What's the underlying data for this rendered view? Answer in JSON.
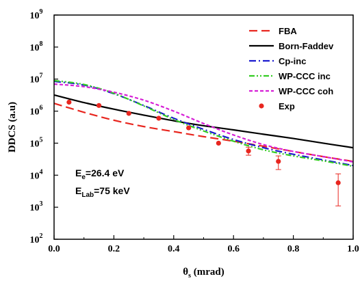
{
  "chart_data": {
    "type": "line",
    "xlabel": "θ",
    "xlabel_sub": "s",
    "xlabel_unit": " (mrad)",
    "ylabel": "DDCS (a.u)",
    "xlim": [
      0.0,
      1.0
    ],
    "ylim": [
      100,
      1000000000
    ],
    "yscale": "log",
    "x_ticks": [
      0.0,
      0.2,
      0.4,
      0.6,
      0.8,
      1.0
    ],
    "x_tick_labels": [
      "0.0",
      "0.2",
      "0.4",
      "0.6",
      "0.8",
      "1.0"
    ],
    "y_ticks": [
      {
        "value": 100,
        "base": "10",
        "exp": "2"
      },
      {
        "value": 1000,
        "base": "10",
        "exp": "3"
      },
      {
        "value": 10000,
        "base": "10",
        "exp": "4"
      },
      {
        "value": 100000,
        "base": "10",
        "exp": "5"
      },
      {
        "value": 1000000,
        "base": "10",
        "exp": "6"
      },
      {
        "value": 10000000,
        "base": "10",
        "exp": "7"
      },
      {
        "value": 100000000,
        "base": "10",
        "exp": "8"
      },
      {
        "value": 1000000000,
        "base": "10",
        "exp": "9"
      }
    ],
    "legend_position": "top-right",
    "series": [
      {
        "name": "FBA",
        "color": "#e8261f",
        "dash": "long-dash",
        "width": 2.2,
        "x": [
          0.0,
          0.1,
          0.2,
          0.3,
          0.4,
          0.5,
          0.6,
          0.7,
          0.8,
          0.9,
          1.0
        ],
        "y": [
          1750000,
          920000,
          520000,
          330000,
          230000,
          160000,
          115000,
          80000,
          55000,
          38000,
          27000
        ]
      },
      {
        "name": "Born-Faddev",
        "color": "#000000",
        "dash": "solid",
        "width": 2.2,
        "x": [
          0.0,
          0.1,
          0.2,
          0.3,
          0.4,
          0.5,
          0.6,
          0.7,
          0.8,
          0.9,
          1.0
        ],
        "y": [
          3200000,
          1850000,
          1150000,
          750000,
          500000,
          350000,
          260000,
          190000,
          140000,
          100000,
          72000
        ]
      },
      {
        "name": "Cp-inc",
        "color": "#1a1acf",
        "dash": "dash-dot",
        "width": 2.2,
        "x": [
          0.0,
          0.1,
          0.2,
          0.3,
          0.4,
          0.5,
          0.6,
          0.7,
          0.8,
          0.9,
          1.0
        ],
        "y": [
          8500000,
          6500000,
          3500000,
          1500000,
          600000,
          270000,
          130000,
          72000,
          45000,
          30000,
          20000
        ]
      },
      {
        "name": "WP-CCC inc",
        "color": "#33cc22",
        "dash": "dash-dot-dot",
        "width": 2.2,
        "x": [
          0.0,
          0.1,
          0.2,
          0.3,
          0.4,
          0.5,
          0.6,
          0.7,
          0.8,
          0.9,
          1.0
        ],
        "y": [
          9000000,
          6800000,
          3600000,
          1450000,
          550000,
          240000,
          115000,
          62000,
          40000,
          28000,
          19000
        ]
      },
      {
        "name": "WP-CCC coh",
        "color": "#d61fd6",
        "dash": "short-dash",
        "width": 2.2,
        "x": [
          0.0,
          0.1,
          0.2,
          0.3,
          0.4,
          0.5,
          0.6,
          0.7,
          0.8,
          0.9,
          1.0
        ],
        "y": [
          7000000,
          5800000,
          3900000,
          2200000,
          1000000,
          410000,
          180000,
          90000,
          55000,
          38000,
          26000
        ]
      }
    ],
    "points": {
      "name": "Exp",
      "color": "#e8261f",
      "x": [
        0.05,
        0.15,
        0.25,
        0.35,
        0.45,
        0.55,
        0.65,
        0.75,
        0.95
      ],
      "y": [
        1900000,
        1500000,
        850000,
        600000,
        300000,
        100000,
        57000,
        27000,
        5800
      ],
      "err_low": [
        null,
        null,
        null,
        null,
        null,
        null,
        42000,
        15000,
        1100
      ],
      "err_high": [
        null,
        null,
        null,
        null,
        null,
        null,
        75000,
        40000,
        11000
      ]
    },
    "annotations": [
      {
        "main": "E",
        "sub": "e",
        "rest": "=26.4 eV"
      },
      {
        "main": "E",
        "sub": "Lab",
        "rest": "=75 keV"
      }
    ]
  }
}
